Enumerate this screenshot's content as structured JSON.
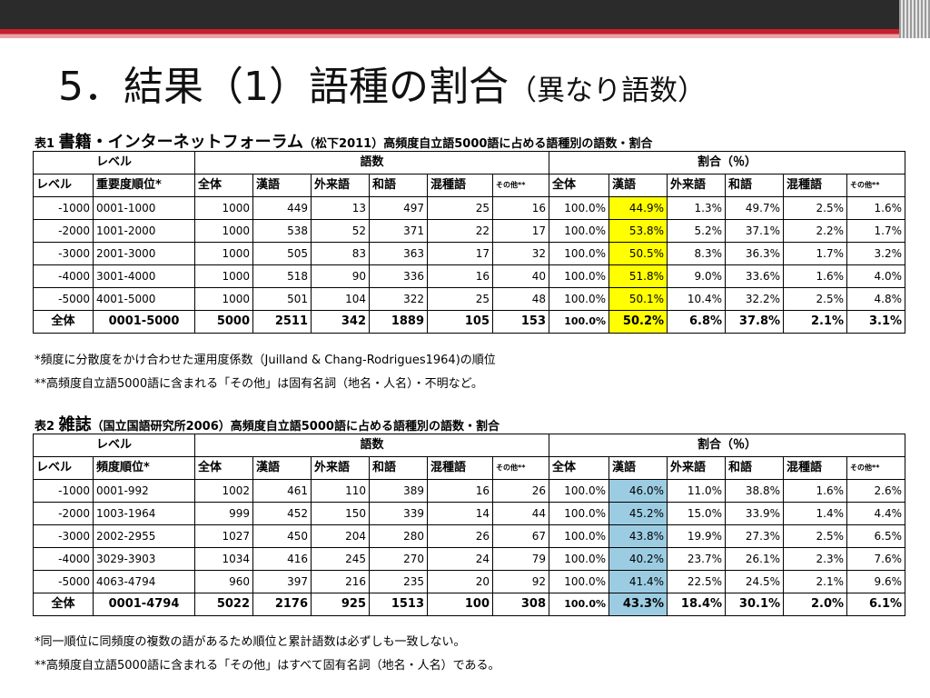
{
  "slide": {
    "title_main": "5．結果（1）語種の割合",
    "title_sub": "（異なり語数）"
  },
  "table1": {
    "caption_prefix": "表1",
    "caption_big": "書籍・インターネットフォーラム",
    "caption_rest": "（松下2011）高頻度自立語5000語に占める語種別の語数・割合",
    "group_level": "レベル",
    "group_count": "語数",
    "group_ratio": "割合（％）",
    "headers": [
      "レベル",
      "重要度順位*",
      "全体",
      "漢語",
      "外来語",
      "和語",
      "混種語",
      "その他**",
      "全体",
      "漢語",
      "外来語",
      "和語",
      "混種語",
      "その他**"
    ],
    "rows": [
      [
        "-1000",
        "0001-1000",
        "1000",
        "449",
        "13",
        "497",
        "25",
        "16",
        "100.0%",
        "44.9%",
        "1.3%",
        "49.7%",
        "2.5%",
        "1.6%"
      ],
      [
        "-2000",
        "1001-2000",
        "1000",
        "538",
        "52",
        "371",
        "22",
        "17",
        "100.0%",
        "53.8%",
        "5.2%",
        "37.1%",
        "2.2%",
        "1.7%"
      ],
      [
        "-3000",
        "2001-3000",
        "1000",
        "505",
        "83",
        "363",
        "17",
        "32",
        "100.0%",
        "50.5%",
        "8.3%",
        "36.3%",
        "1.7%",
        "3.2%"
      ],
      [
        "-4000",
        "3001-4000",
        "1000",
        "518",
        "90",
        "336",
        "16",
        "40",
        "100.0%",
        "51.8%",
        "9.0%",
        "33.6%",
        "1.6%",
        "4.0%"
      ],
      [
        "-5000",
        "4001-5000",
        "1000",
        "501",
        "104",
        "322",
        "25",
        "48",
        "100.0%",
        "50.1%",
        "10.4%",
        "32.2%",
        "2.5%",
        "4.8%"
      ]
    ],
    "total": [
      "全体",
      "0001-5000",
      "5000",
      "2511",
      "342",
      "1889",
      "105",
      "153",
      "100.0%",
      "50.2%",
      "6.8%",
      "37.8%",
      "2.1%",
      "3.1%"
    ],
    "highlight_color": "#ffff00"
  },
  "notes1": [
    "*頻度に分散度をかけ合わせた運用度係数（Juilland & Chang-Rodrigues1964)の順位",
    "**高頻度自立語5000語に含まれる「その他」は固有名詞（地名・人名）・不明など。"
  ],
  "table2": {
    "caption_prefix": "表2",
    "caption_big": "雑誌",
    "caption_rest": "（国立国語研究所2006）高頻度自立語5000語に占める語種別の語数・割合",
    "group_level": "レベル",
    "group_count": "語数",
    "group_ratio": "割合（％）",
    "headers": [
      "レベル",
      "頻度順位*",
      "全体",
      "漢語",
      "外来語",
      "和語",
      "混種語",
      "その他**",
      "全体",
      "漢語",
      "外来語",
      "和語",
      "混種語",
      "その他**"
    ],
    "rows": [
      [
        "-1000",
        "0001-992",
        "1002",
        "461",
        "110",
        "389",
        "16",
        "26",
        "100.0%",
        "46.0%",
        "11.0%",
        "38.8%",
        "1.6%",
        "2.6%"
      ],
      [
        "-2000",
        "1003-1964",
        "999",
        "452",
        "150",
        "339",
        "14",
        "44",
        "100.0%",
        "45.2%",
        "15.0%",
        "33.9%",
        "1.4%",
        "4.4%"
      ],
      [
        "-3000",
        "2002-2955",
        "1027",
        "450",
        "204",
        "280",
        "26",
        "67",
        "100.0%",
        "43.8%",
        "19.9%",
        "27.3%",
        "2.5%",
        "6.5%"
      ],
      [
        "-4000",
        "3029-3903",
        "1034",
        "416",
        "245",
        "270",
        "24",
        "79",
        "100.0%",
        "40.2%",
        "23.7%",
        "26.1%",
        "2.3%",
        "7.6%"
      ],
      [
        "-5000",
        "4063-4794",
        "960",
        "397",
        "216",
        "235",
        "20",
        "92",
        "100.0%",
        "41.4%",
        "22.5%",
        "24.5%",
        "2.1%",
        "9.6%"
      ]
    ],
    "total": [
      "全体",
      "0001-4794",
      "5022",
      "2176",
      "925",
      "1513",
      "100",
      "308",
      "100.0%",
      "43.3%",
      "18.4%",
      "30.1%",
      "2.0%",
      "6.1%"
    ],
    "highlight_color": "#9ccce2"
  },
  "notes2": [
    "*同一順位に同頻度の複数の語があるため順位と累計語数は必ずしも一致しない。",
    "**高頻度自立語5000語に含まれる「その他」はすべて固有名詞（地名・人名）である。"
  ]
}
